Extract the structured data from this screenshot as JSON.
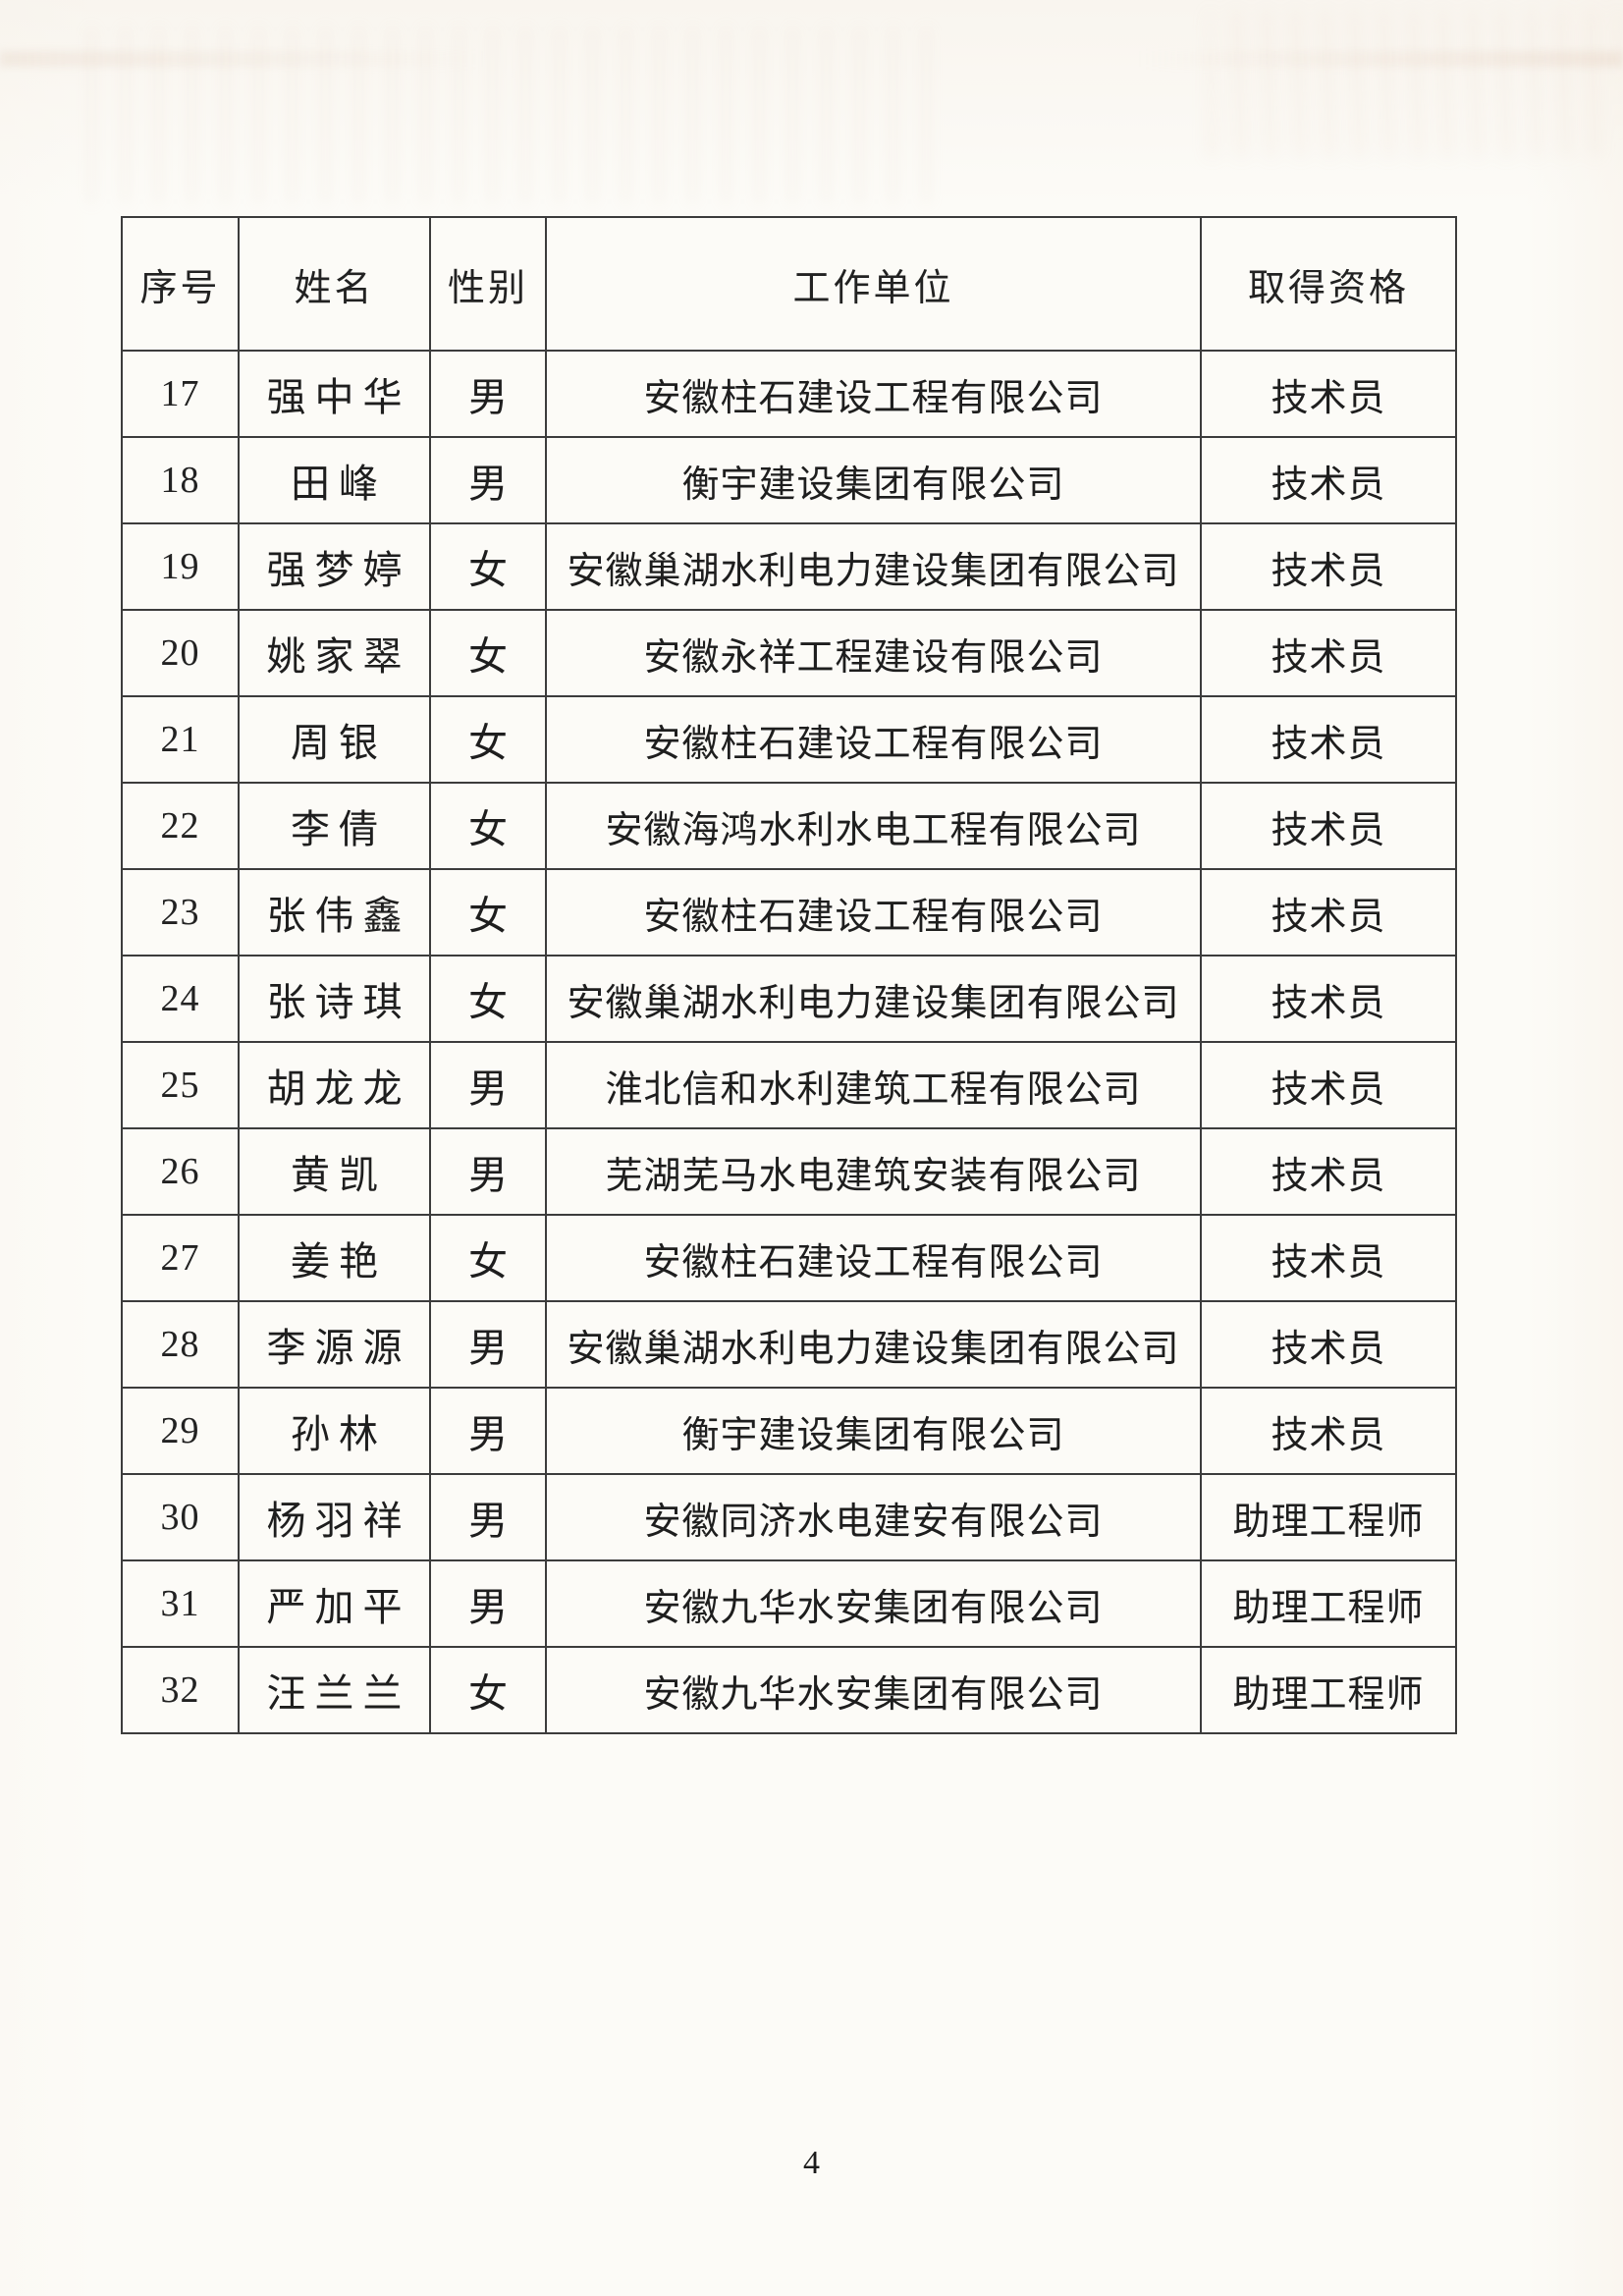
{
  "page": {
    "number": "4"
  },
  "table": {
    "headers": {
      "serial": "序号",
      "name": "姓名",
      "gender": "性别",
      "unit": "工作单位",
      "qualification": "取得资格"
    },
    "rows": [
      {
        "no": "17",
        "name": "强中华",
        "gender": "男",
        "unit": "安徽柱石建设工程有限公司",
        "qualification": "技术员"
      },
      {
        "no": "18",
        "name": "田峰",
        "gender": "男",
        "unit": "衡宇建设集团有限公司",
        "qualification": "技术员"
      },
      {
        "no": "19",
        "name": "强梦婷",
        "gender": "女",
        "unit": "安徽巢湖水利电力建设集团有限公司",
        "qualification": "技术员"
      },
      {
        "no": "20",
        "name": "姚家翠",
        "gender": "女",
        "unit": "安徽永祥工程建设有限公司",
        "qualification": "技术员"
      },
      {
        "no": "21",
        "name": "周银",
        "gender": "女",
        "unit": "安徽柱石建设工程有限公司",
        "qualification": "技术员"
      },
      {
        "no": "22",
        "name": "李倩",
        "gender": "女",
        "unit": "安徽海鸿水利水电工程有限公司",
        "qualification": "技术员"
      },
      {
        "no": "23",
        "name": "张伟鑫",
        "gender": "女",
        "unit": "安徽柱石建设工程有限公司",
        "qualification": "技术员"
      },
      {
        "no": "24",
        "name": "张诗琪",
        "gender": "女",
        "unit": "安徽巢湖水利电力建设集团有限公司",
        "qualification": "技术员"
      },
      {
        "no": "25",
        "name": "胡龙龙",
        "gender": "男",
        "unit": "淮北信和水利建筑工程有限公司",
        "qualification": "技术员"
      },
      {
        "no": "26",
        "name": "黄凯",
        "gender": "男",
        "unit": "芜湖芜马水电建筑安装有限公司",
        "qualification": "技术员"
      },
      {
        "no": "27",
        "name": "姜艳",
        "gender": "女",
        "unit": "安徽柱石建设工程有限公司",
        "qualification": "技术员"
      },
      {
        "no": "28",
        "name": "李源源",
        "gender": "男",
        "unit": "安徽巢湖水利电力建设集团有限公司",
        "qualification": "技术员"
      },
      {
        "no": "29",
        "name": "孙林",
        "gender": "男",
        "unit": "衡宇建设集团有限公司",
        "qualification": "技术员"
      },
      {
        "no": "30",
        "name": "杨羽祥",
        "gender": "男",
        "unit": "安徽同济水电建安有限公司",
        "qualification": "助理工程师"
      },
      {
        "no": "31",
        "name": "严加平",
        "gender": "男",
        "unit": "安徽九华水安集团有限公司",
        "qualification": "助理工程师"
      },
      {
        "no": "32",
        "name": "汪兰兰",
        "gender": "女",
        "unit": "安徽九华水安集团有限公司",
        "qualification": "助理工程师"
      }
    ]
  }
}
